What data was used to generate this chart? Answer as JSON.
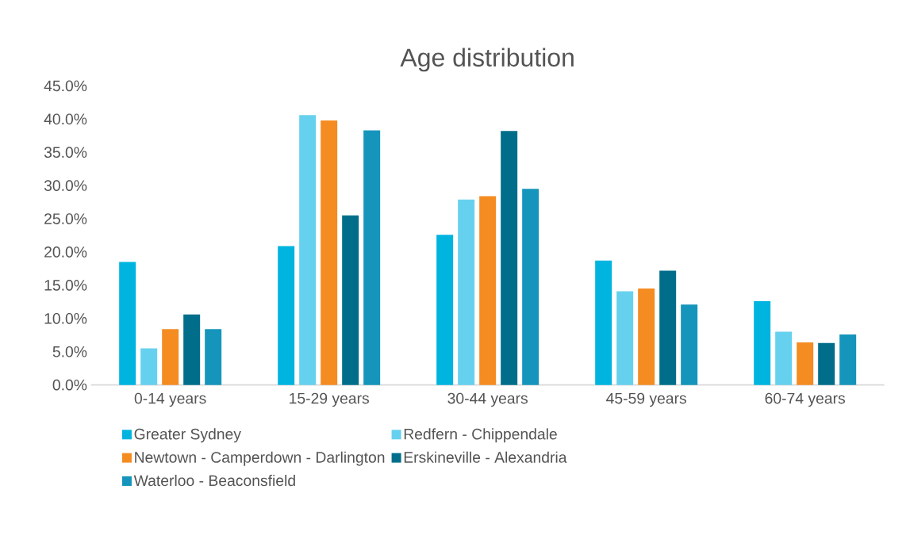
{
  "chart_data": {
    "type": "bar",
    "title": "Age distribution",
    "categories": [
      "0-14 years",
      "15-29 years",
      "30-44 years",
      "45-59 years",
      "60-74 years"
    ],
    "series": [
      {
        "name": "Greater Sydney",
        "color": "#00b4e0",
        "values": [
          18.5,
          20.9,
          22.6,
          18.7,
          12.6
        ]
      },
      {
        "name": "Redfern - Chippendale",
        "color": "#66d1ee",
        "values": [
          5.5,
          40.6,
          27.9,
          14.1,
          8.0
        ]
      },
      {
        "name": "Newtown - Camperdown - Darlington",
        "color": "#f58c22",
        "values": [
          8.4,
          39.8,
          28.4,
          14.5,
          6.4
        ]
      },
      {
        "name": "Erskineville - Alexandria",
        "color": "#006e8a",
        "values": [
          10.6,
          25.5,
          38.2,
          17.2,
          6.3
        ]
      },
      {
        "name": "Waterloo - Beaconsfield",
        "color": "#1595bb",
        "values": [
          8.4,
          38.3,
          29.5,
          12.1,
          7.6
        ]
      }
    ],
    "ylim": [
      0,
      45
    ],
    "yticks": [
      {
        "value": 0,
        "label": "0.0%"
      },
      {
        "value": 5,
        "label": "5.0%"
      },
      {
        "value": 10,
        "label": "10.0%"
      },
      {
        "value": 15,
        "label": "15.0%"
      },
      {
        "value": 20,
        "label": "20.0%"
      },
      {
        "value": 25,
        "label": "25.0%"
      },
      {
        "value": 30,
        "label": "30.0%"
      },
      {
        "value": 35,
        "label": "35.0%"
      },
      {
        "value": 40,
        "label": "40.0%"
      },
      {
        "value": 45,
        "label": "45.0%"
      }
    ],
    "legend": "bottom"
  }
}
